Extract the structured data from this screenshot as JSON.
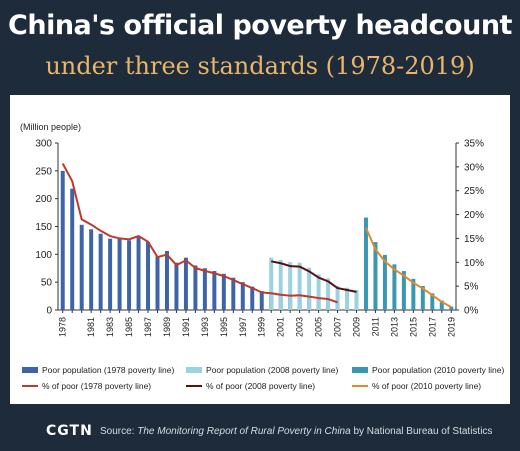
{
  "header": {
    "title": "China's official poverty headcount",
    "subtitle": "under three standards (1978-2019)"
  },
  "footer": {
    "logo": "CGTN",
    "source_prefix": "Source: ",
    "source_title": "The Monitoring Report of Rural Poverty in China",
    "source_suffix": " by National Bureau of Statistics"
  },
  "chart_data": {
    "type": "bar",
    "y_unit_label": "(Million people)",
    "ylim_left": [
      0,
      300
    ],
    "ylim_right": [
      0,
      35
    ],
    "left_ticks": [
      "0",
      "50",
      "100",
      "150",
      "200",
      "250",
      "300"
    ],
    "right_ticks": [
      "0%",
      "5%",
      "10%",
      "15%",
      "20%",
      "25%",
      "30%",
      "35%"
    ],
    "x": [
      1978,
      1979,
      1980,
      1981,
      1982,
      1983,
      1984,
      1985,
      1986,
      1987,
      1988,
      1989,
      1990,
      1991,
      1992,
      1993,
      1994,
      1995,
      1996,
      1997,
      1998,
      1999,
      2000,
      2001,
      2002,
      2003,
      2004,
      2005,
      2006,
      2007,
      2008,
      2009,
      2010,
      2011,
      2012,
      2013,
      2014,
      2015,
      2016,
      2017,
      2018,
      2019
    ],
    "x_tick_labels": [
      "1978",
      "1981",
      "1983",
      "1985",
      "1987",
      "1989",
      "1991",
      "1993",
      "1995",
      "1997",
      "1999",
      "2001",
      "2003",
      "2005",
      "2007",
      "2009",
      "2011",
      "2013",
      "2015",
      "2017",
      "2019"
    ],
    "grid": false,
    "legend_position": "bottom",
    "series": [
      {
        "name": "Poor population (1978 poverty line)",
        "kind": "bar",
        "axis": "left",
        "color": "#3d64a8",
        "values": [
          250,
          218,
          153,
          145,
          137,
          128,
          128,
          125,
          131,
          122,
          96,
          106,
          85,
          94,
          80,
          75,
          70,
          65,
          58,
          50,
          42,
          34,
          32,
          29,
          28,
          29,
          26,
          24,
          21,
          15,
          null,
          null,
          null,
          null,
          null,
          null,
          null,
          null,
          null,
          null,
          null,
          null
        ]
      },
      {
        "name": "Poor population (2008 poverty line)",
        "kind": "bar",
        "axis": "left",
        "color": "#9bd2df",
        "values": [
          null,
          null,
          null,
          null,
          null,
          null,
          null,
          null,
          null,
          null,
          null,
          null,
          null,
          null,
          null,
          null,
          null,
          null,
          null,
          null,
          null,
          null,
          94,
          90,
          86,
          85,
          76,
          64,
          57,
          43,
          40,
          36,
          null,
          null,
          null,
          null,
          null,
          null,
          null,
          null,
          null,
          null
        ]
      },
      {
        "name": "Poor population (2010 poverty line)",
        "kind": "bar",
        "axis": "left",
        "color": "#3a97b3",
        "values": [
          null,
          null,
          null,
          null,
          null,
          null,
          null,
          null,
          null,
          null,
          null,
          null,
          null,
          null,
          null,
          null,
          null,
          null,
          null,
          null,
          null,
          null,
          null,
          null,
          null,
          null,
          null,
          null,
          null,
          null,
          null,
          null,
          166,
          122,
          99,
          82,
          70,
          56,
          43,
          30,
          17,
          6
        ]
      },
      {
        "name": "% of poor (1978 poverty line)",
        "kind": "line",
        "axis": "right",
        "color": "#c0392b",
        "values": [
          30.7,
          27.0,
          19.0,
          17.9,
          16.6,
          15.5,
          15.0,
          14.8,
          15.5,
          14.3,
          11.1,
          11.6,
          9.4,
          10.4,
          8.8,
          8.2,
          7.7,
          7.1,
          6.3,
          5.4,
          4.6,
          3.7,
          3.5,
          3.2,
          3.0,
          3.1,
          2.8,
          2.5,
          2.3,
          1.6,
          null,
          null,
          null,
          null,
          null,
          null,
          null,
          null,
          null,
          null,
          null,
          null
        ]
      },
      {
        "name": "% of poor (2008 poverty line)",
        "kind": "line",
        "axis": "right",
        "color": "#5a0f0f",
        "values": [
          null,
          null,
          null,
          null,
          null,
          null,
          null,
          null,
          null,
          null,
          null,
          null,
          null,
          null,
          null,
          null,
          null,
          null,
          null,
          null,
          null,
          null,
          10.2,
          9.8,
          9.2,
          9.1,
          8.1,
          6.8,
          6.0,
          4.6,
          4.2,
          3.8,
          null,
          null,
          null,
          null,
          null,
          null,
          null,
          null,
          null,
          null
        ]
      },
      {
        "name": "% of poor (2010 poverty line)",
        "kind": "line",
        "axis": "right",
        "color": "#e08a2c",
        "values": [
          null,
          null,
          null,
          null,
          null,
          null,
          null,
          null,
          null,
          null,
          null,
          null,
          null,
          null,
          null,
          null,
          null,
          null,
          null,
          null,
          null,
          null,
          null,
          null,
          null,
          null,
          null,
          null,
          null,
          null,
          null,
          null,
          17.2,
          12.7,
          10.2,
          8.5,
          7.2,
          5.7,
          4.5,
          3.1,
          1.7,
          0.6
        ]
      }
    ]
  }
}
